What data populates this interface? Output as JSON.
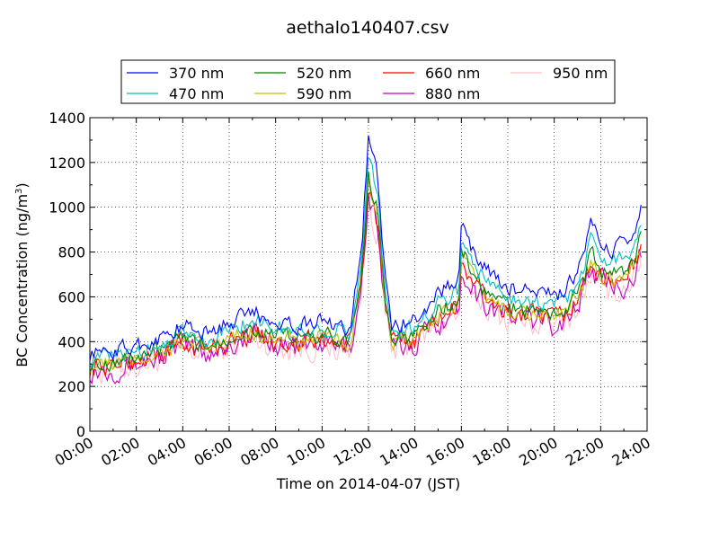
{
  "chart_data": {
    "type": "line",
    "title": "aethalo140407.csv",
    "xlabel": "Time on 2014-04-07 (JST)",
    "ylabel": "BC Concentration (ng/m",
    "ylabel_sup": "3",
    "ylabel_close": ")",
    "xlim": [
      "00:00",
      "24:00"
    ],
    "ylim": [
      0,
      1400
    ],
    "xticks": [
      "00:00",
      "02:00",
      "04:00",
      "06:00",
      "08:00",
      "10:00",
      "12:00",
      "14:00",
      "16:00",
      "18:00",
      "20:00",
      "22:00",
      "24:00"
    ],
    "yticks": [
      "0",
      "200",
      "400",
      "600",
      "800",
      "1000",
      "1200",
      "1400"
    ],
    "grid": true,
    "legend_position": "top",
    "series": [
      {
        "name": "370 nm",
        "color": "#0000ff",
        "offset": 0.03,
        "scale": 1.12,
        "noise": 55
      },
      {
        "name": "470 nm",
        "color": "#00bfbf",
        "offset": 0.02,
        "scale": 1.06,
        "noise": 55
      },
      {
        "name": "520 nm",
        "color": "#008000",
        "offset": 0.0,
        "scale": 1.0,
        "noise": 55
      },
      {
        "name": "590 nm",
        "color": "#bfbf00",
        "offset": -0.01,
        "scale": 0.98,
        "noise": 55
      },
      {
        "name": "660 nm",
        "color": "#ff0000",
        "offset": -0.02,
        "scale": 0.97,
        "noise": 70
      },
      {
        "name": "880 nm",
        "color": "#bf00bf",
        "offset": -0.03,
        "scale": 0.95,
        "noise": 85
      },
      {
        "name": "950 nm",
        "color": "#ffc0cb",
        "offset": -0.04,
        "scale": 0.93,
        "noise": 90
      }
    ],
    "base_profile": {
      "hours": [
        0,
        1,
        2,
        3,
        4,
        5,
        6,
        7,
        8,
        9,
        10,
        11.2,
        11.7,
        12.0,
        12.4,
        12.7,
        13.0,
        14.0,
        15.0,
        15.9,
        16.0,
        16.6,
        17.3,
        18.0,
        19.0,
        20.0,
        20.6,
        21.0,
        21.3,
        21.6,
        22.0,
        22.5,
        23.0,
        23.5,
        23.8
      ],
      "values": [
        300,
        310,
        330,
        360,
        410,
        380,
        420,
        460,
        430,
        410,
        430,
        400,
        700,
        1150,
        980,
        600,
        400,
        430,
        540,
        580,
        810,
        680,
        600,
        560,
        540,
        520,
        560,
        620,
        690,
        800,
        720,
        700,
        720,
        780,
        900
      ]
    }
  }
}
